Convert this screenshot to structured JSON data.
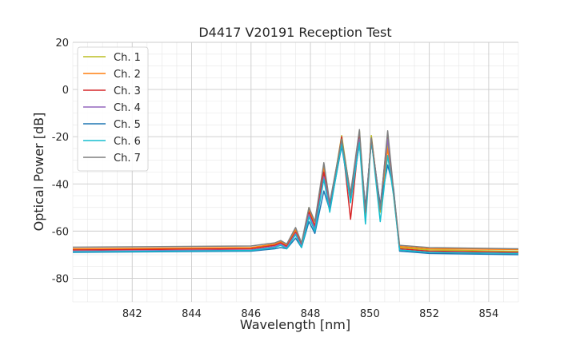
{
  "chart_data": {
    "type": "line",
    "title": "D4417 V20191 Reception Test",
    "xlabel": "Wavelength [nm]",
    "ylabel": "Optical Power [dB]",
    "xlim": [
      840.0,
      855.0
    ],
    "ylim": [
      -90,
      20
    ],
    "xticks": [
      842,
      844,
      846,
      848,
      850,
      852,
      854
    ],
    "yticks": [
      -80,
      -60,
      -40,
      -20,
      0,
      20
    ],
    "grid": true,
    "legend_position": "top-left",
    "series": [
      {
        "name": "Ch. 1",
        "color": "#bcbd22",
        "points": [
          [
            840.0,
            -67.8
          ],
          [
            846.0,
            -67.2
          ],
          [
            846.8,
            -66.0
          ],
          [
            847.0,
            -65.0
          ],
          [
            847.2,
            -66.5
          ],
          [
            847.5,
            -60.0
          ],
          [
            847.7,
            -66.0
          ],
          [
            847.95,
            -50.0
          ],
          [
            848.15,
            -58.0
          ],
          [
            848.45,
            -32.0
          ],
          [
            848.65,
            -50.0
          ],
          [
            849.05,
            -19.5
          ],
          [
            849.35,
            -45.0
          ],
          [
            849.65,
            -17.5
          ],
          [
            849.85,
            -54.0
          ],
          [
            850.05,
            -19.5
          ],
          [
            850.35,
            -52.0
          ],
          [
            850.6,
            -23.0
          ],
          [
            850.8,
            -45.0
          ],
          [
            851.0,
            -67.0
          ],
          [
            852.0,
            -68.0
          ],
          [
            855.0,
            -68.5
          ]
        ]
      },
      {
        "name": "Ch. 2",
        "color": "#ff7f0e",
        "points": [
          [
            840.0,
            -67.5
          ],
          [
            846.0,
            -67.0
          ],
          [
            846.8,
            -65.5
          ],
          [
            847.0,
            -64.5
          ],
          [
            847.2,
            -66.0
          ],
          [
            847.5,
            -59.5
          ],
          [
            847.7,
            -65.5
          ],
          [
            847.95,
            -51.0
          ],
          [
            848.15,
            -57.5
          ],
          [
            848.45,
            -33.5
          ],
          [
            848.65,
            -49.0
          ],
          [
            849.05,
            -21.0
          ],
          [
            849.35,
            -46.0
          ],
          [
            849.65,
            -20.0
          ],
          [
            849.85,
            -53.0
          ],
          [
            850.05,
            -21.5
          ],
          [
            850.35,
            -51.0
          ],
          [
            850.6,
            -25.0
          ],
          [
            850.8,
            -44.0
          ],
          [
            851.0,
            -66.5
          ],
          [
            852.0,
            -67.5
          ],
          [
            855.0,
            -67.8
          ]
        ]
      },
      {
        "name": "Ch. 3",
        "color": "#d62728",
        "points": [
          [
            840.0,
            -68.0
          ],
          [
            846.0,
            -67.5
          ],
          [
            846.8,
            -66.0
          ],
          [
            847.0,
            -65.0
          ],
          [
            847.2,
            -66.5
          ],
          [
            847.5,
            -60.5
          ],
          [
            847.7,
            -66.0
          ],
          [
            847.95,
            -52.0
          ],
          [
            848.15,
            -58.0
          ],
          [
            848.45,
            -35.0
          ],
          [
            848.65,
            -51.0
          ],
          [
            849.05,
            -20.0
          ],
          [
            849.35,
            -55.0
          ],
          [
            849.65,
            -19.5
          ],
          [
            849.85,
            -52.0
          ],
          [
            850.05,
            -20.5
          ],
          [
            850.35,
            -50.0
          ],
          [
            850.6,
            -19.0
          ],
          [
            850.8,
            -44.0
          ],
          [
            851.0,
            -67.5
          ],
          [
            852.0,
            -68.5
          ],
          [
            855.0,
            -69.0
          ]
        ]
      },
      {
        "name": "Ch. 4",
        "color": "#9467bd",
        "points": [
          [
            840.0,
            -68.5
          ],
          [
            846.0,
            -68.0
          ],
          [
            846.8,
            -66.5
          ],
          [
            847.0,
            -65.5
          ],
          [
            847.2,
            -67.0
          ],
          [
            847.5,
            -61.0
          ],
          [
            847.7,
            -66.5
          ],
          [
            847.95,
            -53.0
          ],
          [
            848.15,
            -59.0
          ],
          [
            848.45,
            -37.0
          ],
          [
            848.65,
            -50.0
          ],
          [
            849.05,
            -22.0
          ],
          [
            849.35,
            -47.0
          ],
          [
            849.65,
            -21.0
          ],
          [
            849.85,
            -50.0
          ],
          [
            850.05,
            -22.0
          ],
          [
            850.35,
            -49.0
          ],
          [
            850.6,
            -21.0
          ],
          [
            850.8,
            -43.0
          ],
          [
            851.0,
            -68.0
          ],
          [
            852.0,
            -69.0
          ],
          [
            855.0,
            -69.5
          ]
        ]
      },
      {
        "name": "Ch. 5",
        "color": "#1f77b4",
        "points": [
          [
            840.0,
            -69.0
          ],
          [
            846.0,
            -68.5
          ],
          [
            846.8,
            -67.5
          ],
          [
            847.0,
            -67.0
          ],
          [
            847.2,
            -67.5
          ],
          [
            847.5,
            -63.0
          ],
          [
            847.7,
            -67.0
          ],
          [
            847.95,
            -56.0
          ],
          [
            848.15,
            -61.0
          ],
          [
            848.45,
            -43.0
          ],
          [
            848.65,
            -51.0
          ],
          [
            849.05,
            -24.0
          ],
          [
            849.35,
            -47.0
          ],
          [
            849.65,
            -23.0
          ],
          [
            849.85,
            -50.0
          ],
          [
            850.05,
            -22.0
          ],
          [
            850.35,
            -49.0
          ],
          [
            850.6,
            -32.0
          ],
          [
            850.8,
            -42.0
          ],
          [
            851.0,
            -68.5
          ],
          [
            852.0,
            -69.5
          ],
          [
            855.0,
            -70.0
          ]
        ]
      },
      {
        "name": "Ch. 6",
        "color": "#17becf",
        "points": [
          [
            840.0,
            -68.8
          ],
          [
            846.0,
            -68.2
          ],
          [
            846.8,
            -67.0
          ],
          [
            847.0,
            -66.0
          ],
          [
            847.2,
            -67.5
          ],
          [
            847.5,
            -61.5
          ],
          [
            847.7,
            -67.0
          ],
          [
            847.95,
            -54.0
          ],
          [
            848.15,
            -60.0
          ],
          [
            848.45,
            -38.0
          ],
          [
            848.65,
            -52.0
          ],
          [
            849.05,
            -23.0
          ],
          [
            849.35,
            -48.0
          ],
          [
            849.65,
            -22.5
          ],
          [
            849.85,
            -57.0
          ],
          [
            850.05,
            -21.0
          ],
          [
            850.35,
            -56.0
          ],
          [
            850.6,
            -28.0
          ],
          [
            850.8,
            -45.0
          ],
          [
            851.0,
            -68.0
          ],
          [
            852.0,
            -69.0
          ],
          [
            855.0,
            -69.5
          ]
        ]
      },
      {
        "name": "Ch. 7",
        "color": "#7f7f7f",
        "points": [
          [
            840.0,
            -66.8
          ],
          [
            846.0,
            -66.3
          ],
          [
            846.8,
            -65.0
          ],
          [
            847.0,
            -64.0
          ],
          [
            847.2,
            -65.5
          ],
          [
            847.5,
            -58.5
          ],
          [
            847.7,
            -65.0
          ],
          [
            847.95,
            -50.0
          ],
          [
            848.15,
            -56.0
          ],
          [
            848.45,
            -31.0
          ],
          [
            848.65,
            -48.0
          ],
          [
            849.05,
            -21.0
          ],
          [
            849.35,
            -44.0
          ],
          [
            849.65,
            -17.0
          ],
          [
            849.85,
            -52.0
          ],
          [
            850.05,
            -20.5
          ],
          [
            850.35,
            -51.0
          ],
          [
            850.6,
            -17.5
          ],
          [
            850.8,
            -43.0
          ],
          [
            851.0,
            -66.0
          ],
          [
            852.0,
            -67.0
          ],
          [
            855.0,
            -67.5
          ]
        ]
      }
    ]
  }
}
